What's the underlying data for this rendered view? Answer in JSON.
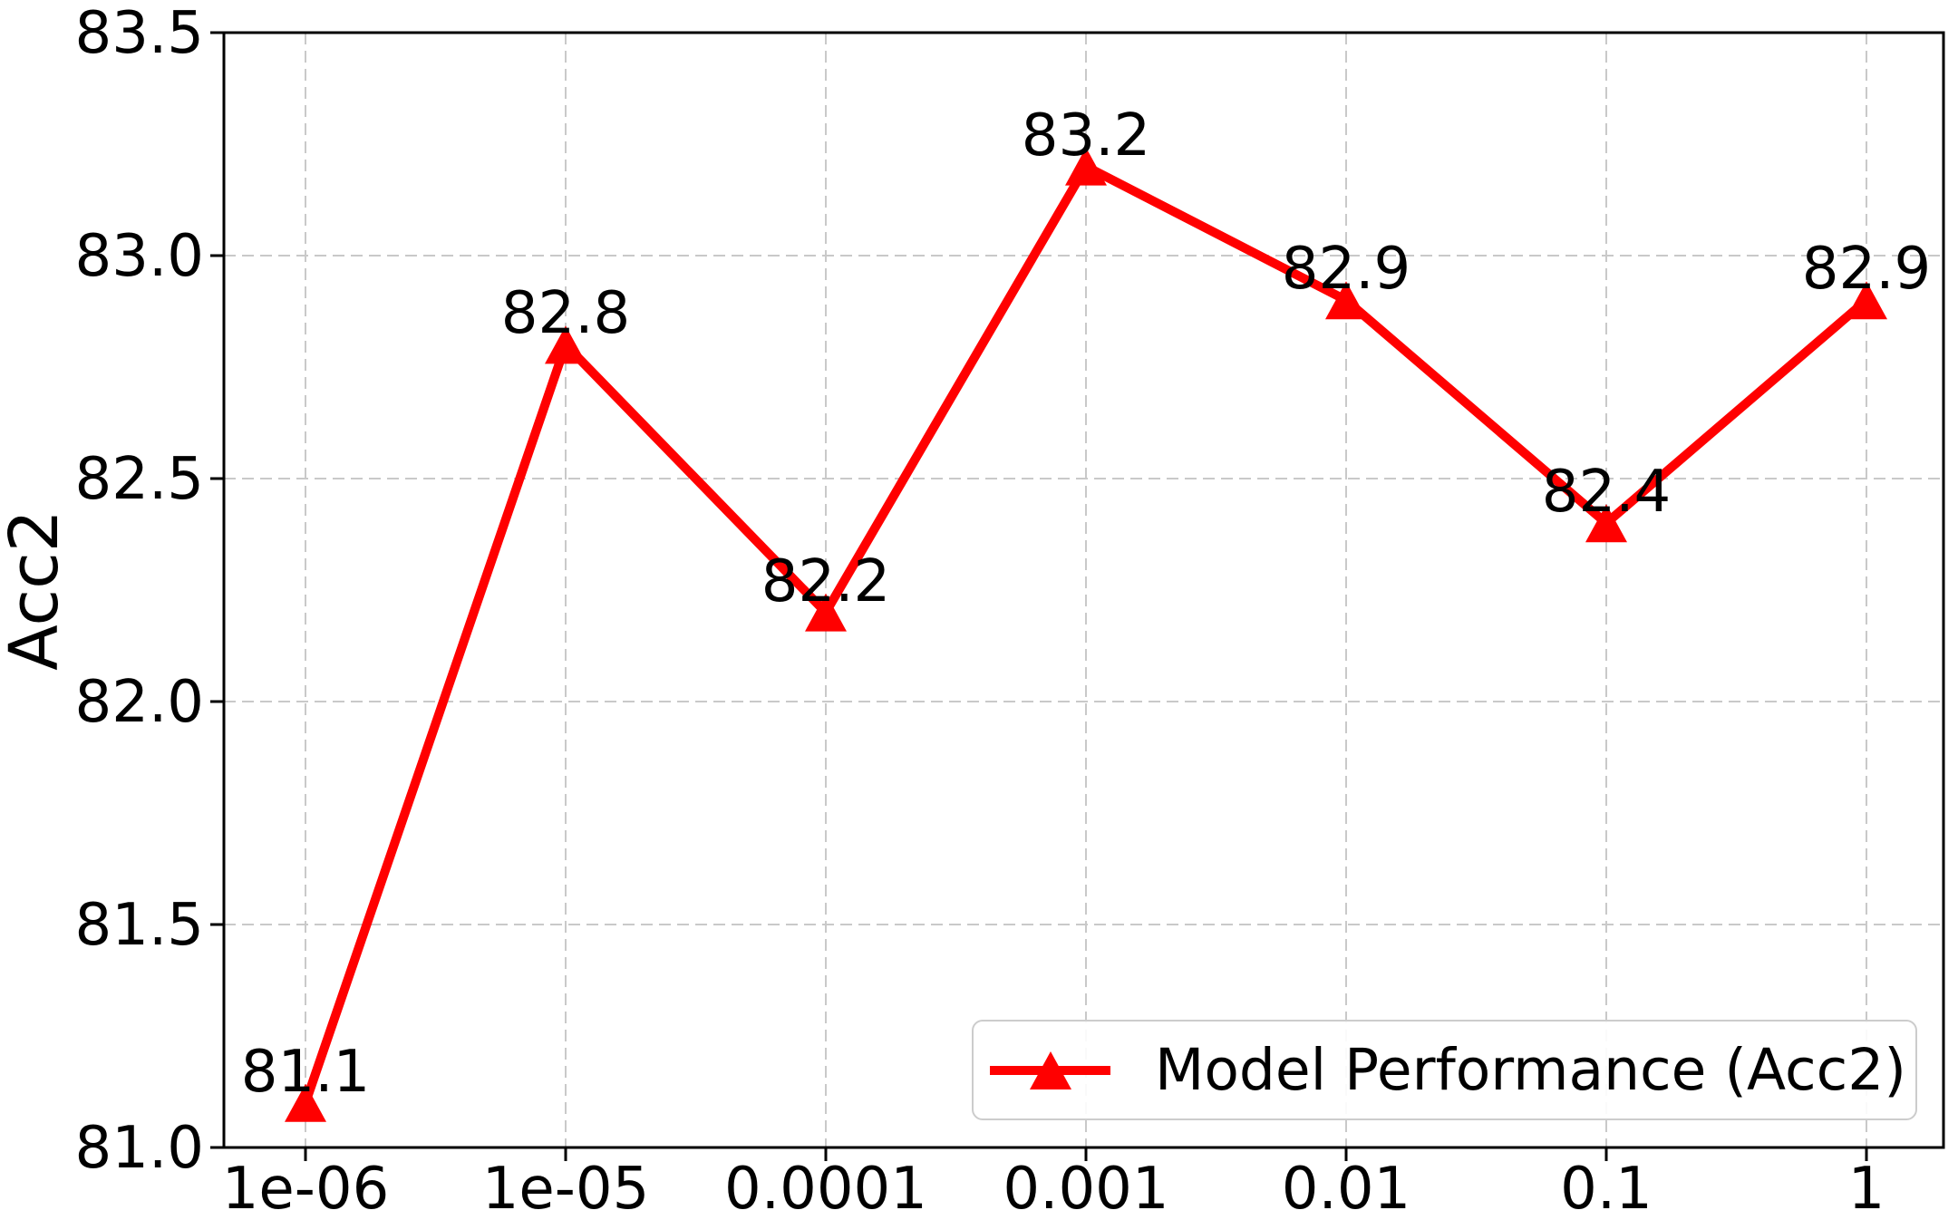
{
  "chart_data": {
    "type": "line",
    "title": "",
    "xlabel": "",
    "ylabel": "Acc2",
    "x_scale": "log",
    "x": [
      1e-06,
      1e-05,
      0.0001,
      0.001,
      0.01,
      0.1,
      1
    ],
    "x_tick_labels": [
      "1e-06",
      "1e-05",
      "0.0001",
      "0.001",
      "0.01",
      "0.1",
      "1"
    ],
    "y_ticks": [
      81.0,
      81.5,
      82.0,
      82.5,
      83.0,
      83.5
    ],
    "ylim": [
      81.0,
      83.5
    ],
    "grid": true,
    "grid_style": "dashed",
    "legend_position": "lower right",
    "series": [
      {
        "name": "Model Performance (Acc2)",
        "marker": "triangle-up",
        "color": "#ff0000",
        "values": [
          81.1,
          82.8,
          82.2,
          83.2,
          82.9,
          82.4,
          82.9
        ],
        "point_labels": [
          "81.1",
          "82.8",
          "82.2",
          "83.2",
          "82.9",
          "82.4",
          "82.9"
        ]
      }
    ],
    "colors": {
      "line": "#ff0000",
      "grid": "#c9c9c9",
      "axis": "#000000",
      "text": "#000000",
      "legend_border": "#cccccc",
      "background": "#ffffff"
    }
  }
}
